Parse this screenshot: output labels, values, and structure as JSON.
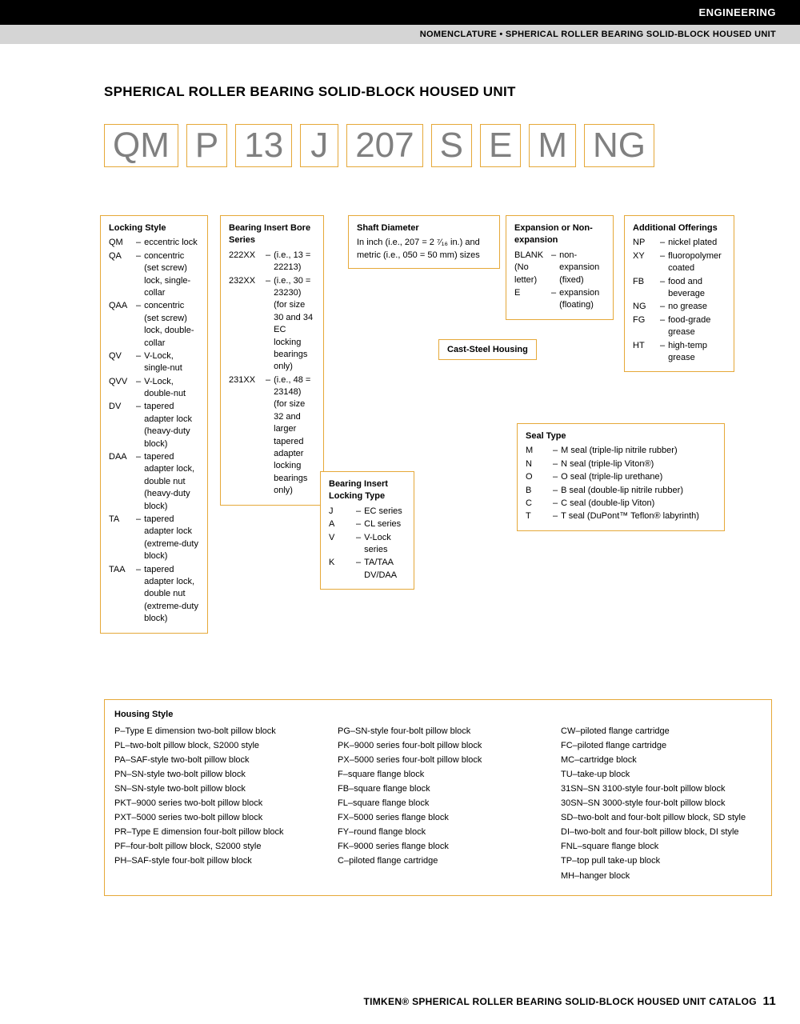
{
  "header": {
    "section": "ENGINEERING",
    "subsection": "NOMENCLATURE • SPHERICAL ROLLER BEARING SOLID-BLOCK HOUSED UNIT"
  },
  "page_title": "SPHERICAL ROLLER BEARING SOLID-BLOCK HOUSED UNIT",
  "codes": [
    "QM",
    "P",
    "13",
    "J",
    "207",
    "S",
    "E",
    "M",
    "NG"
  ],
  "locking_style": {
    "title": "Locking Style",
    "items": [
      {
        "code": "QM",
        "desc": "eccentric lock"
      },
      {
        "code": "QA",
        "desc": "concentric (set screw) lock, single-collar"
      },
      {
        "code": "QAA",
        "desc": "concentric (set screw) lock, double-collar"
      },
      {
        "code": "QV",
        "desc": "V-Lock, single-nut"
      },
      {
        "code": "QVV",
        "desc": "V-Lock, double-nut"
      },
      {
        "code": "DV",
        "desc": "tapered adapter lock (heavy-duty block)"
      },
      {
        "code": "DAA",
        "desc": "tapered adapter lock, double nut (heavy-duty block)"
      },
      {
        "code": "TA",
        "desc": "tapered adapter lock (extreme-duty block)"
      },
      {
        "code": "TAA",
        "desc": "tapered adapter lock, double nut (extreme-duty block)"
      }
    ]
  },
  "bore_series": {
    "title": "Bearing Insert Bore Series",
    "items": [
      {
        "code": "222XX",
        "desc": "(i.e., 13 = 22213)"
      },
      {
        "code": "232XX",
        "desc": "(i.e., 30 = 23230) (for size 30 and 34 EC locking bearings only)"
      },
      {
        "code": "231XX",
        "desc": "(i.e., 48 = 23148) (for size 32 and larger tapered adapter locking bearings only)"
      }
    ]
  },
  "locking_type": {
    "title": "Bearing Insert Locking Type",
    "items": [
      {
        "code": "J",
        "desc": "EC series"
      },
      {
        "code": "A",
        "desc": "CL series"
      },
      {
        "code": "V",
        "desc": "V-Lock series"
      },
      {
        "code": "K",
        "desc": "TA/TAA DV/DAA"
      }
    ]
  },
  "shaft_diameter": {
    "title": "Shaft Diameter",
    "desc": "In inch (i.e., 207 = 2 ⁷⁄₁₆ in.) and metric (i.e., 050 = 50 mm) sizes"
  },
  "cast_steel": "Cast-Steel Housing",
  "expansion": {
    "title": "Expansion or Non-expansion",
    "items": [
      {
        "code": "BLANK (No letter)",
        "desc": "non-expansion (fixed)"
      },
      {
        "code": "E",
        "desc": "expansion (floating)"
      }
    ]
  },
  "seal_type": {
    "title": "Seal Type",
    "items": [
      {
        "code": "M",
        "desc": "M seal (triple-lip nitrile rubber)"
      },
      {
        "code": "N",
        "desc": "N seal (triple-lip Viton®)"
      },
      {
        "code": "O",
        "desc": "O seal (triple-lip urethane)"
      },
      {
        "code": "B",
        "desc": "B seal (double-lip nitrile rubber)"
      },
      {
        "code": "C",
        "desc": "C seal (double-lip Viton)"
      },
      {
        "code": "T",
        "desc": "T seal (DuPont™ Teflon® labyrinth)"
      }
    ]
  },
  "additional": {
    "title": "Additional Offerings",
    "items": [
      {
        "code": "NP",
        "desc": "nickel plated"
      },
      {
        "code": "XY",
        "desc": "fluoropolymer coated"
      },
      {
        "code": "FB",
        "desc": "food and beverage"
      },
      {
        "code": "NG",
        "desc": "no grease"
      },
      {
        "code": "FG",
        "desc": "food-grade grease"
      },
      {
        "code": "HT",
        "desc": "high-temp grease"
      }
    ]
  },
  "housing": {
    "title": "Housing Style",
    "col1": [
      {
        "code": "P",
        "desc": "Type E dimension two-bolt pillow block"
      },
      {
        "code": "PL",
        "desc": "two-bolt pillow block, S2000 style"
      },
      {
        "code": "PA",
        "desc": "SAF-style two-bolt pillow block"
      },
      {
        "code": "PN",
        "desc": "SN-style two-bolt pillow block"
      },
      {
        "code": "SN",
        "desc": "SN-style two-bolt pillow block"
      },
      {
        "code": "PKT",
        "desc": "9000 series two-bolt pillow block"
      },
      {
        "code": "PXT",
        "desc": "5000 series two-bolt pillow block"
      },
      {
        "code": "PR",
        "desc": "Type E dimension four-bolt pillow block"
      },
      {
        "code": "PF",
        "desc": "four-bolt pillow block, S2000 style"
      },
      {
        "code": "PH",
        "desc": "SAF-style four-bolt pillow block"
      }
    ],
    "col2": [
      {
        "code": "PG",
        "desc": "SN-style four-bolt pillow block"
      },
      {
        "code": "PK",
        "desc": "9000 series four-bolt pillow block"
      },
      {
        "code": "PX",
        "desc": "5000 series four-bolt pillow block"
      },
      {
        "code": "F",
        "desc": "square flange block"
      },
      {
        "code": "FB",
        "desc": "square flange block"
      },
      {
        "code": "FL",
        "desc": "square flange block"
      },
      {
        "code": "FX",
        "desc": "5000 series flange block"
      },
      {
        "code": "FY",
        "desc": "round flange block"
      },
      {
        "code": "FK",
        "desc": "9000 series flange block"
      },
      {
        "code": "C",
        "desc": "piloted flange cartridge"
      }
    ],
    "col3": [
      {
        "code": "CW",
        "desc": "piloted flange cartridge"
      },
      {
        "code": "FC",
        "desc": "piloted flange cartridge"
      },
      {
        "code": "MC",
        "desc": "cartridge block"
      },
      {
        "code": "TU",
        "desc": "take-up block"
      },
      {
        "code": "31SN",
        "desc": "SN 3100-style four-bolt pillow block"
      },
      {
        "code": "30SN",
        "desc": "SN 3000-style four-bolt pillow block"
      },
      {
        "code": "SD",
        "desc": "two-bolt and four-bolt pillow block, SD style"
      },
      {
        "code": "DI",
        "desc": "two-bolt and four-bolt pillow block, DI style"
      },
      {
        "code": "FNL",
        "desc": "square flange block"
      },
      {
        "code": "TP",
        "desc": "top pull take-up block"
      },
      {
        "code": "MH",
        "desc": "hanger block"
      }
    ]
  },
  "footer": {
    "brand": "TIMKEN®",
    "text": "SPHERICAL ROLLER BEARING SOLID-BLOCK HOUSED UNIT CATALOG",
    "page": "11"
  },
  "colors": {
    "border": "#e5a839",
    "code_text": "#808080",
    "connector": "#c8c8c8",
    "bar_gray": "#d5d5d5"
  }
}
